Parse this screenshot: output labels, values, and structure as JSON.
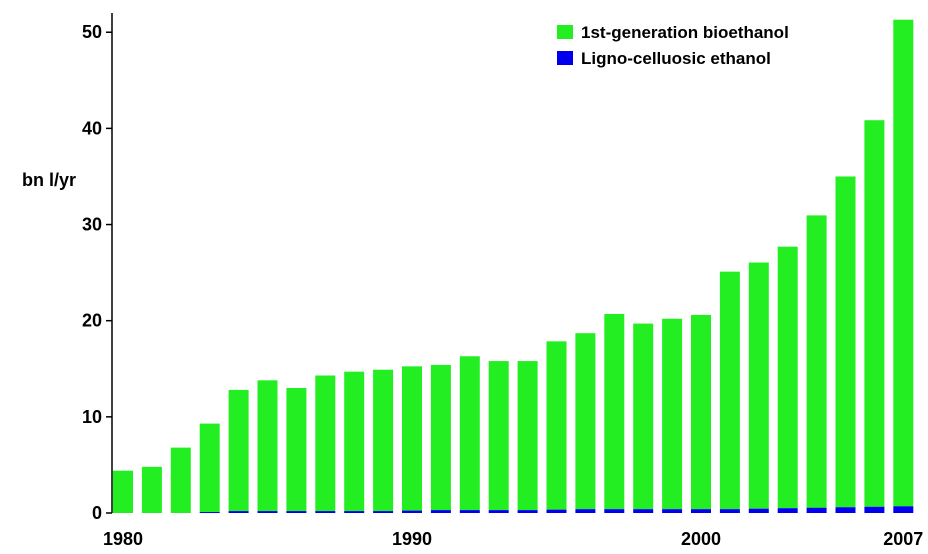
{
  "chart_data": {
    "type": "bar",
    "stacked": true,
    "ylabel": "bn l/yr",
    "ylim": [
      0,
      52
    ],
    "yticks": [
      0,
      10,
      20,
      30,
      40,
      50
    ],
    "xticks": [
      "1980",
      "1990",
      "2000",
      "2007"
    ],
    "grid": false,
    "legend_position": "top-right",
    "categories": [
      "1980",
      "1981",
      "1982",
      "1983",
      "1984",
      "1985",
      "1986",
      "1987",
      "1988",
      "1989",
      "1990",
      "1991",
      "1992",
      "1993",
      "1994",
      "1995",
      "1996",
      "1997",
      "1998",
      "1999",
      "2000",
      "2001",
      "2002",
      "2003",
      "2004",
      "2005",
      "2006",
      "2007"
    ],
    "series": [
      {
        "name": "Ligno-celluosic ethanol",
        "color": "#0000ee",
        "values": [
          0,
          0,
          0,
          0.1,
          0.2,
          0.2,
          0.2,
          0.2,
          0.2,
          0.2,
          0.25,
          0.3,
          0.3,
          0.3,
          0.3,
          0.35,
          0.4,
          0.4,
          0.4,
          0.4,
          0.4,
          0.4,
          0.45,
          0.5,
          0.55,
          0.6,
          0.65,
          0.7
        ]
      },
      {
        "name": "1st-generation bioethanol",
        "color": "#22ee22",
        "values": [
          4.4,
          4.8,
          6.8,
          9.2,
          12.6,
          13.6,
          12.8,
          14.1,
          14.5,
          14.7,
          15.0,
          15.1,
          16.0,
          15.5,
          15.5,
          17.5,
          18.3,
          20.3,
          19.3,
          19.8,
          20.2,
          24.7,
          25.6,
          27.2,
          30.4,
          34.4,
          40.2,
          50.6
        ]
      }
    ]
  }
}
